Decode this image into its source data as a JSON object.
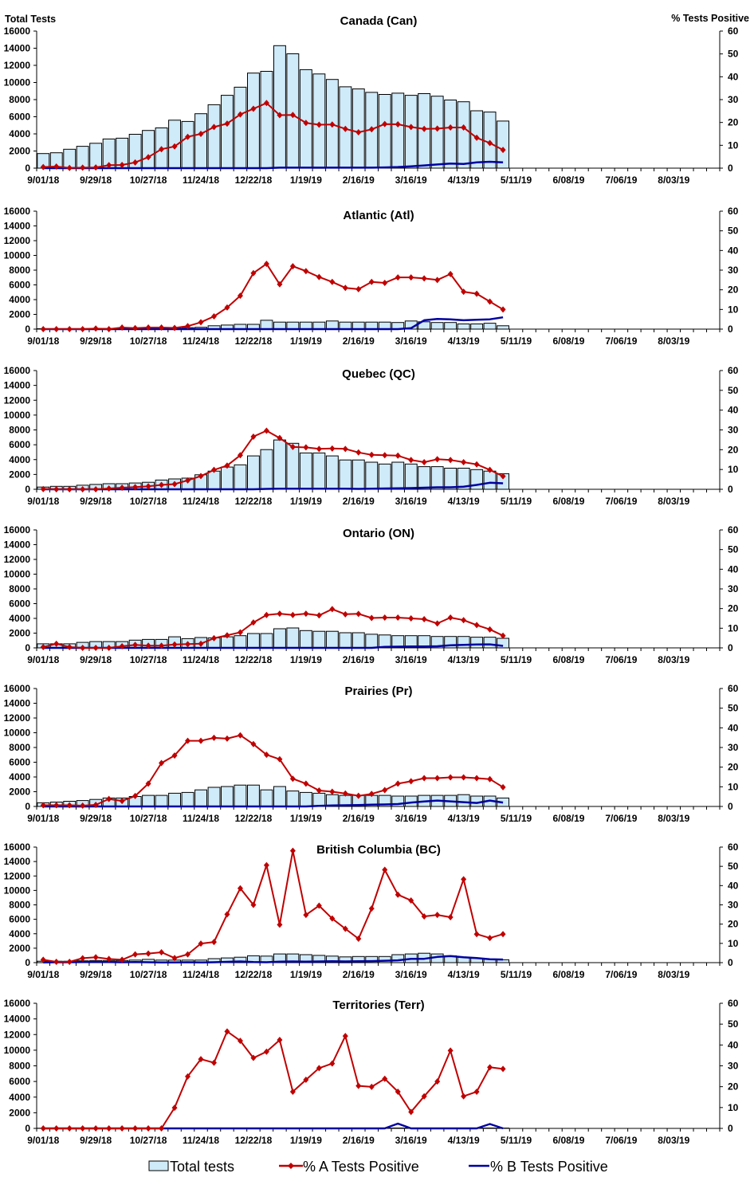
{
  "chart_data": {
    "type": "bar+line",
    "y_left_label": "Total Tests",
    "y_right_label": "% Tests Positive",
    "ylim_left": [
      0,
      16000
    ],
    "ylim_right": [
      0,
      60
    ],
    "y_left_ticks": [
      "0",
      "2000",
      "4000",
      "6000",
      "8000",
      "10000",
      "12000",
      "14000",
      "16000"
    ],
    "y_right_ticks": [
      "0",
      "10",
      "20",
      "30",
      "40",
      "50",
      "60"
    ],
    "x_ticks": [
      "9/01/18",
      "9/29/18",
      "10/27/18",
      "11/24/18",
      "12/22/18",
      "1/19/19",
      "2/16/19",
      "3/16/19",
      "4/13/19",
      "5/11/19",
      "6/08/19",
      "7/06/19",
      "8/03/19"
    ],
    "xlim": [
      "9/01/18",
      "8/31/19"
    ],
    "x": [
      "9/01/18",
      "9/08/18",
      "9/15/18",
      "9/22/18",
      "9/29/18",
      "10/06/18",
      "10/13/18",
      "10/20/18",
      "10/27/18",
      "11/03/18",
      "11/10/18",
      "11/17/18",
      "11/24/18",
      "12/01/18",
      "12/08/18",
      "12/15/18",
      "12/22/18",
      "12/29/18",
      "1/05/19",
      "1/12/19",
      "1/19/19",
      "1/26/19",
      "2/02/19",
      "2/09/19",
      "2/16/19",
      "2/23/19",
      "3/02/19",
      "3/09/19",
      "3/16/19",
      "3/23/19",
      "3/30/19",
      "4/06/19",
      "4/13/19",
      "4/20/19",
      "4/27/19",
      "5/04/19"
    ],
    "legend": {
      "position": "bottom",
      "items": [
        "Total tests",
        "% A Tests Positive",
        "% B Tests Positive"
      ]
    },
    "colors": {
      "bars": "#cfeaf9",
      "bar_outline": "#000000",
      "series_a": "#c00000",
      "series_b": "#0000a0"
    },
    "panels": [
      {
        "title": "Canada (Can)",
        "total_tests": [
          1700,
          1800,
          2200,
          2550,
          2900,
          3400,
          3500,
          3950,
          4400,
          4700,
          5600,
          5450,
          6350,
          7400,
          8500,
          9450,
          11100,
          11300,
          14300,
          13350,
          11500,
          11000,
          10350,
          9500,
          9250,
          8850,
          8600,
          8750,
          8500,
          8700,
          8400,
          7950,
          7750,
          6700,
          6550,
          5500
        ],
        "pct_a": [
          0.5,
          0.7,
          0.1,
          0.2,
          0.3,
          1.3,
          1.4,
          2.5,
          4.8,
          8.3,
          9.5,
          13.7,
          15,
          18,
          19.5,
          23.5,
          26,
          28.5,
          23.2,
          23.3,
          19.8,
          19,
          19.1,
          17.2,
          15.7,
          17,
          19.3,
          19.2,
          18,
          17.2,
          17.3,
          17.8,
          17.8,
          13.3,
          11,
          8
        ],
        "pct_b": [
          0,
          0,
          0,
          0,
          0,
          0,
          0,
          0,
          0,
          0,
          0,
          0,
          0,
          0,
          0,
          0,
          0,
          0,
          0.2,
          0.2,
          0.2,
          0.2,
          0.2,
          0.2,
          0.2,
          0.2,
          0.3,
          0.5,
          0.8,
          1.2,
          1.6,
          2,
          1.8,
          2.5,
          2.8,
          2.5
        ]
      },
      {
        "title": "Atlantic (Atl)",
        "total_tests": [
          50,
          50,
          50,
          50,
          80,
          80,
          100,
          100,
          120,
          150,
          150,
          200,
          250,
          450,
          550,
          650,
          650,
          1200,
          950,
          950,
          950,
          950,
          1100,
          950,
          950,
          950,
          950,
          900,
          1100,
          1000,
          900,
          900,
          700,
          700,
          800,
          450
        ],
        "pct_a": [
          0,
          0,
          0,
          0,
          0.3,
          0,
          0.8,
          0.5,
          0.8,
          0.8,
          0.6,
          1.5,
          3.5,
          6.5,
          11,
          17,
          28.5,
          33.2,
          22.8,
          32,
          29.5,
          26.5,
          24,
          21,
          20.3,
          24,
          23.5,
          26.3,
          26.3,
          25.8,
          25,
          28,
          19,
          18,
          14,
          10
        ],
        "pct_b": [
          0,
          0,
          0,
          0,
          0,
          0,
          0,
          0,
          0,
          0,
          0,
          0,
          0,
          0,
          0,
          0,
          0,
          0,
          0,
          0,
          0,
          0,
          0,
          0,
          0,
          0,
          0,
          0,
          0.5,
          4.5,
          5.2,
          5,
          4.5,
          4.8,
          5,
          6
        ]
      },
      {
        "title": "Quebec (QC)",
        "total_tests": [
          300,
          400,
          400,
          550,
          650,
          750,
          750,
          850,
          950,
          1250,
          1400,
          1500,
          1950,
          2450,
          3000,
          3300,
          4500,
          5350,
          6650,
          6200,
          4900,
          4900,
          4500,
          3950,
          3950,
          3650,
          3400,
          3650,
          3400,
          3050,
          3050,
          2850,
          2850,
          2650,
          2450,
          2100
        ],
        "pct_a": [
          0.1,
          0,
          0,
          0,
          0,
          0.4,
          0.8,
          1.1,
          1.5,
          2.2,
          2.6,
          4.5,
          6.7,
          9.8,
          12,
          17.2,
          26.6,
          29.6,
          25.9,
          21.4,
          21.2,
          20.4,
          20.6,
          20.4,
          18.6,
          17.4,
          17.2,
          17,
          14.8,
          13.7,
          15.2,
          14.8,
          13.7,
          12.6,
          9.8,
          6.6
        ],
        "pct_b": [
          0,
          0,
          0,
          0,
          0,
          0,
          0,
          0,
          0,
          0,
          0,
          0,
          0,
          0,
          0,
          0,
          0,
          0.2,
          0.3,
          0.3,
          0.3,
          0.3,
          0.3,
          0.3,
          0.2,
          0.3,
          0.4,
          0.5,
          0.6,
          0.8,
          1,
          1,
          1.3,
          2.2,
          3.3,
          3
        ]
      },
      {
        "title": "Ontario (ON)",
        "total_tests": [
          550,
          550,
          550,
          750,
          850,
          850,
          850,
          1050,
          1150,
          1150,
          1500,
          1250,
          1400,
          1350,
          1500,
          1650,
          1950,
          1950,
          2600,
          2700,
          2350,
          2250,
          2250,
          2050,
          2050,
          1850,
          1750,
          1650,
          1650,
          1650,
          1550,
          1550,
          1550,
          1450,
          1450,
          1300
        ],
        "pct_a": [
          0.4,
          2.1,
          0.4,
          0,
          0,
          0,
          0.8,
          1.5,
          1.1,
          1.1,
          1.7,
          1.9,
          2.1,
          4.9,
          6.4,
          7.9,
          12.9,
          16.7,
          17.4,
          16.7,
          17.4,
          16.5,
          19.7,
          17.1,
          17.3,
          15.2,
          15.4,
          15.4,
          15,
          14.6,
          12.4,
          15.4,
          14.1,
          11.6,
          9.4,
          6.2
        ],
        "pct_b": [
          0,
          0,
          0,
          0,
          0,
          0,
          0,
          0,
          0,
          0,
          0,
          0,
          0,
          0,
          0,
          0,
          0,
          0,
          0,
          0,
          0,
          0,
          0,
          0,
          0,
          0,
          0.5,
          0.6,
          0.7,
          0.7,
          0.8,
          1.3,
          1.5,
          1.7,
          1.8,
          1
        ]
      },
      {
        "title": "Prairies (Pr)",
        "total_tests": [
          500,
          600,
          700,
          800,
          950,
          1150,
          1150,
          1350,
          1500,
          1500,
          1800,
          1900,
          2250,
          2600,
          2700,
          2900,
          2900,
          2250,
          2700,
          2100,
          1900,
          1800,
          1600,
          1500,
          1500,
          1500,
          1500,
          1400,
          1400,
          1500,
          1500,
          1500,
          1600,
          1400,
          1400,
          1150
        ],
        "pct_a": [
          0.6,
          0.6,
          0.6,
          0.4,
          0.8,
          3.8,
          2.8,
          5.3,
          11.6,
          22.1,
          25.9,
          33.4,
          33.4,
          34.9,
          34.5,
          36.2,
          31.7,
          26.3,
          24,
          14.1,
          11.6,
          8.1,
          7.5,
          6.6,
          5.4,
          6.4,
          8.3,
          11.6,
          12.8,
          14.4,
          14.4,
          14.8,
          14.8,
          14.4,
          13.9,
          9.8
        ],
        "pct_b": [
          0,
          0,
          0,
          0,
          0,
          0,
          0,
          0,
          0,
          0,
          0,
          0,
          0,
          0,
          0,
          0,
          0,
          0,
          0,
          0,
          0,
          0.3,
          0.5,
          0.6,
          0.7,
          0.9,
          1,
          1.2,
          2,
          2.5,
          3,
          2.6,
          2.2,
          1.8,
          3,
          2
        ]
      },
      {
        "title": "British Columbia (BC)",
        "total_tests": [
          200,
          200,
          200,
          250,
          300,
          300,
          300,
          350,
          450,
          350,
          350,
          350,
          350,
          550,
          650,
          750,
          950,
          900,
          1200,
          1200,
          1100,
          1000,
          900,
          800,
          850,
          850,
          850,
          1100,
          1200,
          1300,
          1200,
          950,
          750,
          600,
          450,
          400
        ],
        "pct_a": [
          1.5,
          0.4,
          0.4,
          2.3,
          2.8,
          1.9,
          1.5,
          4.3,
          4.7,
          5.4,
          2.4,
          4.3,
          9.9,
          10.7,
          25.1,
          38.6,
          30,
          50.6,
          19.7,
          58.1,
          24.8,
          29.6,
          22.9,
          17.6,
          12.4,
          28.1,
          48.2,
          35.3,
          32.3,
          24,
          24.8,
          23.6,
          43.3,
          14.8,
          12.8,
          14.8
        ],
        "pct_b": [
          0.1,
          0.2,
          0.2,
          0.3,
          0.4,
          0.3,
          0.2,
          0.3,
          0.2,
          0.1,
          0.1,
          0.2,
          0.1,
          0.2,
          0.4,
          0.6,
          0.3,
          0.2,
          0.5,
          0.6,
          0.5,
          0.6,
          0.7,
          0.6,
          0.7,
          0.8,
          1,
          1.2,
          2,
          2,
          3,
          3.4,
          2.8,
          2.4,
          1.8,
          1.6
        ]
      },
      {
        "title": "Territories (Terr)",
        "total_tests": [
          20,
          20,
          20,
          20,
          20,
          20,
          20,
          20,
          20,
          20,
          30,
          40,
          40,
          50,
          50,
          50,
          50,
          50,
          50,
          50,
          50,
          50,
          50,
          50,
          50,
          50,
          50,
          50,
          50,
          50,
          50,
          50,
          50,
          50,
          50,
          40
        ],
        "pct_a": [
          0,
          0,
          0,
          0,
          0,
          0,
          0,
          0,
          0,
          0,
          9.9,
          24.9,
          33.2,
          31.5,
          46.5,
          42,
          33.8,
          36.8,
          42.4,
          17.6,
          23.3,
          28.9,
          31.1,
          44.3,
          20.4,
          19.9,
          23.8,
          17.6,
          7.9,
          15.4,
          22.5,
          37.3,
          15.4,
          17.6,
          29.3,
          28.5
        ],
        "pct_b": [
          0,
          0,
          0,
          0,
          0,
          0,
          0,
          0,
          0,
          0,
          0,
          0,
          0,
          0,
          0,
          0,
          0,
          0,
          0,
          0,
          0,
          0,
          0,
          0,
          0,
          0,
          0,
          2.3,
          0,
          0,
          0,
          0,
          0,
          0,
          2.1,
          0
        ]
      }
    ]
  }
}
